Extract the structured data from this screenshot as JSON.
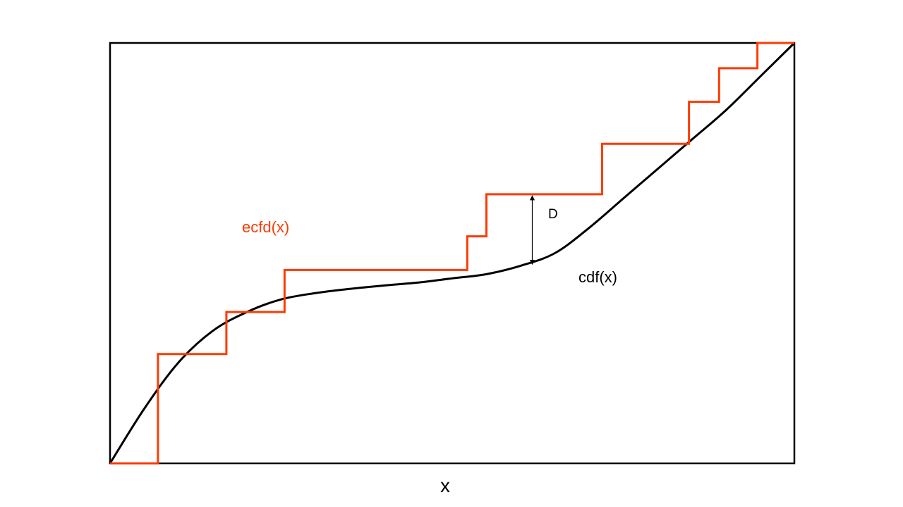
{
  "labels": {
    "ecdf": "ecfd(x)",
    "cdf": "cdf(x)",
    "gap": "D",
    "x_axis": "x"
  },
  "colors": {
    "ecdf": "#ff3a00",
    "cdf": "#000000",
    "frame": "#000000"
  },
  "chart_data": {
    "type": "line",
    "xlabel": "x",
    "ylabel": "",
    "xlim": [
      0,
      1
    ],
    "ylim": [
      0,
      1
    ],
    "grid": false,
    "series": [
      {
        "name": "cdf(x)",
        "kind": "smooth",
        "x": [
          0,
          0.05,
          0.1,
          0.15,
          0.2,
          0.25,
          0.3,
          0.35,
          0.4,
          0.45,
          0.5,
          0.55,
          0.6,
          0.65,
          0.7,
          0.75,
          0.8,
          0.85,
          0.9,
          0.95,
          1
        ],
        "y": [
          0,
          0.13,
          0.24,
          0.315,
          0.36,
          0.39,
          0.405,
          0.415,
          0.423,
          0.43,
          0.44,
          0.45,
          0.47,
          0.5,
          0.56,
          0.63,
          0.7,
          0.77,
          0.84,
          0.92,
          1
        ]
      },
      {
        "name": "ecfd(x)",
        "kind": "step",
        "x": [
          0,
          0.07,
          0.07,
          0.17,
          0.17,
          0.255,
          0.255,
          0.522,
          0.522,
          0.55,
          0.55,
          0.719,
          0.719,
          0.846,
          0.846,
          0.89,
          0.89,
          0.946,
          0.946,
          1
        ],
        "y": [
          0,
          0,
          0.26,
          0.26,
          0.36,
          0.36,
          0.46,
          0.46,
          0.54,
          0.54,
          0.64,
          0.64,
          0.76,
          0.76,
          0.86,
          0.86,
          0.94,
          0.94,
          1,
          1
        ]
      }
    ],
    "annotations": [
      {
        "text": "D",
        "x": 0.617,
        "y_from": 0.47,
        "y_to": 0.64
      }
    ]
  }
}
